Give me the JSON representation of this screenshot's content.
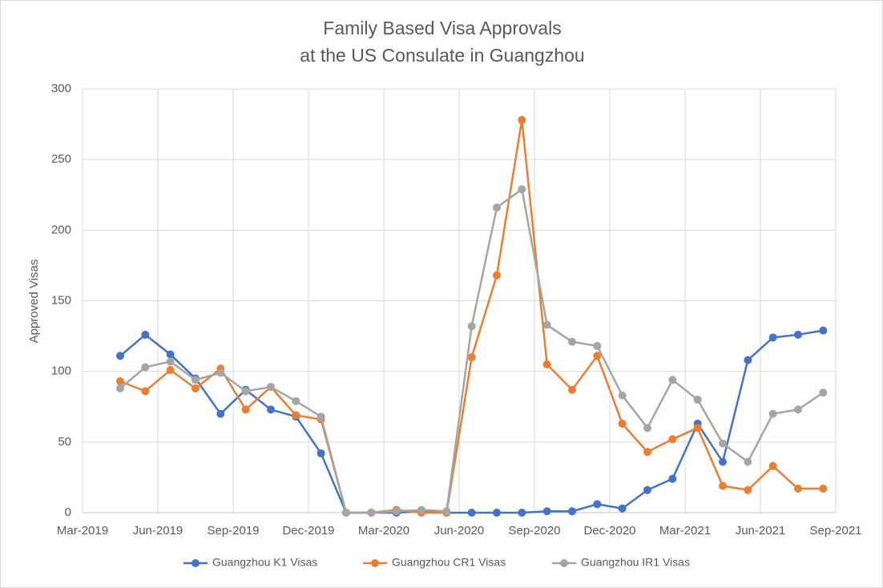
{
  "chart_data": {
    "type": "line",
    "title": [
      "Family Based Visa Approvals",
      "at the US Consulate in Guangzhou"
    ],
    "y_label": "Approved Visas",
    "x": [
      "2019-04",
      "2019-05",
      "2019-06",
      "2019-07",
      "2019-08",
      "2019-09",
      "2019-10",
      "2019-11",
      "2019-12",
      "2020-01",
      "2020-02",
      "2020-03",
      "2020-04",
      "2020-05",
      "2020-06",
      "2020-07",
      "2020-08",
      "2020-09",
      "2020-10",
      "2020-11",
      "2020-12",
      "2021-01",
      "2021-02",
      "2021-03",
      "2021-04",
      "2021-05",
      "2021-06",
      "2021-07",
      "2021-08"
    ],
    "series": [
      {
        "name": "Guangzhou K1 Visas",
        "color": "#4472c4",
        "values": [
          111,
          126,
          112,
          95,
          70,
          87,
          73,
          68,
          42,
          0,
          0,
          0,
          1,
          0,
          0,
          0,
          0,
          1,
          1,
          6,
          3,
          16,
          24,
          63,
          36,
          108,
          124,
          126,
          129
        ]
      },
      {
        "name": "Guangzhou CR1 Visas",
        "color": "#ed7d31",
        "values": [
          93,
          86,
          101,
          88,
          102,
          73,
          89,
          69,
          66,
          0,
          0,
          2,
          0,
          0,
          110,
          168,
          278,
          105,
          87,
          111,
          63,
          43,
          52,
          60,
          19,
          16,
          33,
          17,
          17
        ]
      },
      {
        "name": "Guangzhou IR1 Visas",
        "color": "#a5a5a5",
        "values": [
          88,
          103,
          107,
          94,
          99,
          86,
          89,
          79,
          68,
          0,
          0,
          1,
          2,
          1,
          132,
          216,
          229,
          133,
          121,
          118,
          83,
          60,
          94,
          80,
          49,
          36,
          70,
          73,
          85
        ]
      }
    ],
    "xlim": [
      "2019-03",
      "2021-09"
    ],
    "xticks": [
      {
        "value": "2019-03",
        "label": "Mar-2019"
      },
      {
        "value": "2019-06",
        "label": "Jun-2019"
      },
      {
        "value": "2019-09",
        "label": "Sep-2019"
      },
      {
        "value": "2019-12",
        "label": "Dec-2019"
      },
      {
        "value": "2020-03",
        "label": "Mar-2020"
      },
      {
        "value": "2020-06",
        "label": "Jun-2020"
      },
      {
        "value": "2020-09",
        "label": "Sep-2020"
      },
      {
        "value": "2020-12",
        "label": "Dec-2020"
      },
      {
        "value": "2021-03",
        "label": "Mar-2021"
      },
      {
        "value": "2021-06",
        "label": "Jun-2021"
      },
      {
        "value": "2021-09",
        "label": "Sep-2021"
      }
    ],
    "ylim": [
      0,
      300
    ],
    "yticks": [
      0,
      50,
      100,
      150,
      200,
      250,
      300
    ],
    "grid": true,
    "legend": "bottom"
  }
}
